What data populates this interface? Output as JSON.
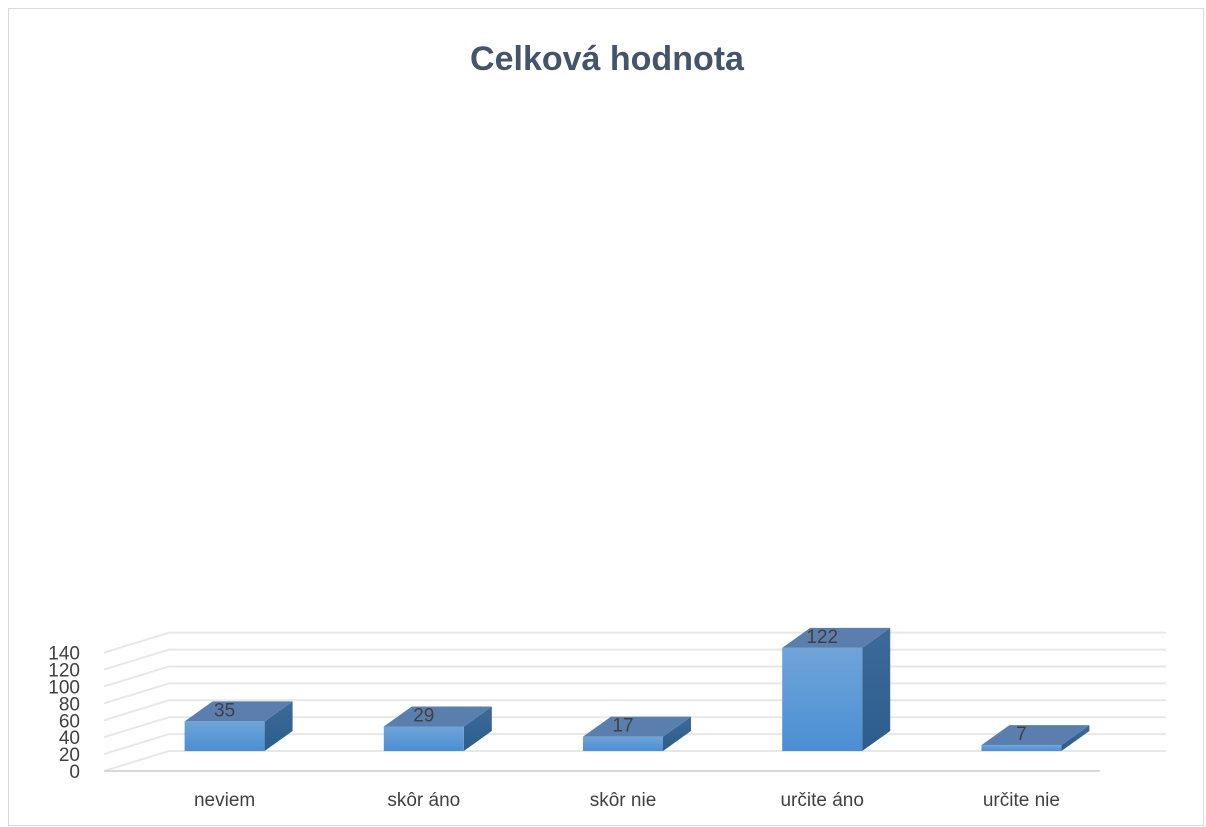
{
  "chart_data": {
    "type": "bar",
    "title": "Celková hodnota",
    "categories": [
      "neviem",
      "skôr áno",
      "skôr nie",
      "určite áno",
      "určite nie"
    ],
    "values": [
      35,
      29,
      17,
      122,
      7
    ],
    "ylim": [
      0,
      140
    ],
    "yticks": [
      "0",
      "20",
      "40",
      "60",
      "80",
      "100",
      "120",
      "140"
    ],
    "grid": true,
    "style": "3d-column",
    "colors": {
      "front": "#5b9bd5",
      "side": "#2e5f8a",
      "top": "#5a7fae",
      "grid": "#e7e7e7",
      "title": "#44546a"
    }
  }
}
